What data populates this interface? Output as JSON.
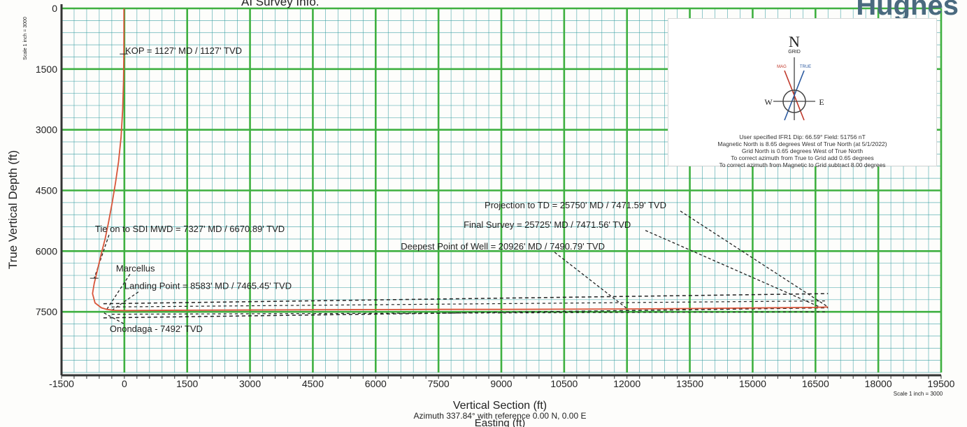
{
  "header": {
    "title_fragment": "AI Survey Info.",
    "brand_fragment": "Hughes"
  },
  "chart_data": {
    "type": "line",
    "xlabel": "Vertical Section (ft)",
    "ylabel": "True Vertical Depth (ft)",
    "x_ticks": [
      -1500,
      0,
      1500,
      3000,
      4500,
      6000,
      7500,
      9000,
      10500,
      12000,
      13500,
      15000,
      16500,
      18000,
      19500
    ],
    "y_ticks": [
      0,
      1500,
      3000,
      4500,
      6000,
      7500
    ],
    "xlim": [
      -1500,
      19500
    ],
    "ylim": [
      0,
      9000
    ],
    "y_inverted": true,
    "grid": true,
    "subtitle_1": "Azimuth 337.84° with reference 0.00 N, 0.00 E",
    "subtitle_2": "Easting (ft)",
    "scale_left": "Scale 1 inch = 3000",
    "scale_right": "Scale 1 inch = 3000",
    "series": [
      {
        "color": "#d8553a",
        "x": [
          -10,
          -10,
          -12,
          -20,
          -40,
          -80,
          -140,
          -210,
          -290,
          -380,
          -460,
          -560,
          -650,
          -720,
          -760,
          -700,
          -550,
          -420,
          -250,
          0,
          1500,
          3000,
          4500,
          6000,
          7500,
          9000,
          10500,
          12000,
          13500,
          15000,
          16500,
          16800
        ],
        "y": [
          0,
          500,
          1127,
          1800,
          2500,
          3200,
          3800,
          4300,
          4800,
          5300,
          5700,
          6100,
          6500,
          6800,
          7050,
          7280,
          7400,
          7440,
          7465,
          7470,
          7460,
          7455,
          7450,
          7445,
          7440,
          7440,
          7435,
          7430,
          7420,
          7405,
          7390,
          7380
        ]
      }
    ],
    "annotations": [
      {
        "text": "KOP = 1127' MD / 1127' TVD",
        "x": 20,
        "y": 1127
      },
      {
        "text": "Tie on to SDI MWD = 7327' MD / 6670.89' TVD",
        "x": -700,
        "y": 5530
      },
      {
        "text": "Marcellus",
        "x": -200,
        "y": 6500
      },
      {
        "text": "Landing Point = 8583' MD / 7465.45' TVD",
        "x": 0,
        "y": 6940
      },
      {
        "text": "Onondaga - 7492' TVD",
        "x": -350,
        "y": 8000
      },
      {
        "text": "Deepest Point of Well = 20926' MD / 7490.79' TVD",
        "x": 6600,
        "y": 5960
      },
      {
        "text": "Final Survey = 25725' MD / 7471.56' TVD",
        "x": 8100,
        "y": 5420
      },
      {
        "text": "Projection to TD = 25750' MD / 7471.59' TVD",
        "x": 8600,
        "y": 4940
      }
    ],
    "formations": [
      {
        "name": "Marcellus",
        "x": [
          -500,
          16800
        ],
        "y": [
          7300,
          7050
        ]
      },
      {
        "name": "Onondaga",
        "x": [
          -500,
          16800
        ],
        "y": [
          7650,
          7400
        ]
      }
    ]
  },
  "legend_box": {
    "north_label": "N",
    "grid_label": "GRID",
    "mag_label": "MAG",
    "true_label": "TRUE",
    "west_label": "W",
    "east_label": "E",
    "lines": [
      "User specified IFR1 Dip: 66.59°  Field: 51756 nT",
      "Magnetic North is 8.65 degrees West of True North (at 5/1/2022)",
      "Grid North is 0.65 degrees West of True North",
      "To correct azimuth from True to Grid add 0.65 degrees",
      "To correct azimuth from Magnetic to Grid subtract 8.00 degrees"
    ]
  }
}
